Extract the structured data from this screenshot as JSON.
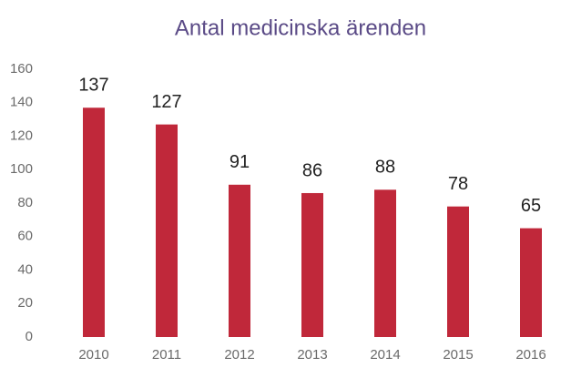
{
  "chart_data": {
    "type": "bar",
    "title": "Antal medicinska ärenden",
    "categories": [
      "2010",
      "2011",
      "2012",
      "2013",
      "2014",
      "2015",
      "2016"
    ],
    "values": [
      137,
      127,
      91,
      86,
      88,
      78,
      65
    ],
    "color": "#c0283a",
    "ylim": [
      0,
      160
    ],
    "yticks": [
      0,
      20,
      40,
      60,
      80,
      100,
      120,
      140,
      160
    ],
    "grid": false
  }
}
